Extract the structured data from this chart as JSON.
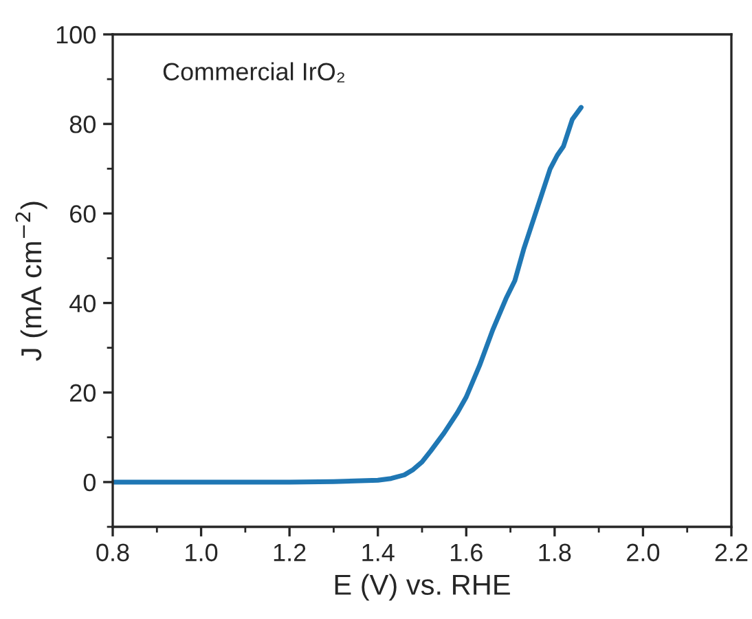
{
  "chart_data": {
    "type": "line",
    "xlabel": "E (V) vs. RHE",
    "ylabel": "J (mA cm$^{−2}$)",
    "annotations": [
      "Commercial IrO₂"
    ],
    "series": [
      {
        "color": "#1f77b4",
        "x": [
          0.8,
          1.0,
          1.2,
          1.3,
          1.4,
          1.43,
          1.46,
          1.48,
          1.5,
          1.52,
          1.55,
          1.58,
          1.6,
          1.63,
          1.66,
          1.69,
          1.71,
          1.73,
          1.76,
          1.79,
          1.806,
          1.82,
          1.84,
          1.86
        ],
        "values": [
          0,
          0,
          0,
          0.1,
          0.4,
          0.8,
          1.6,
          2.8,
          4.5,
          7,
          11,
          15.5,
          19,
          26,
          34,
          41,
          45,
          52,
          61,
          70,
          73,
          75,
          81,
          83.7
        ]
      }
    ],
    "xlim": [
      0.8,
      2.2
    ],
    "xticks": [
      0.8,
      {
        "value": 1,
        "label": "1.0"
      },
      1.2,
      1.4,
      1.6,
      1.8,
      {
        "value": 2,
        "label": "2.0"
      },
      2.2
    ],
    "ylim": [
      -10,
      100
    ],
    "yticks": [
      0,
      20,
      40,
      60,
      80,
      100
    ],
    "grid": false,
    "legend": false
  }
}
